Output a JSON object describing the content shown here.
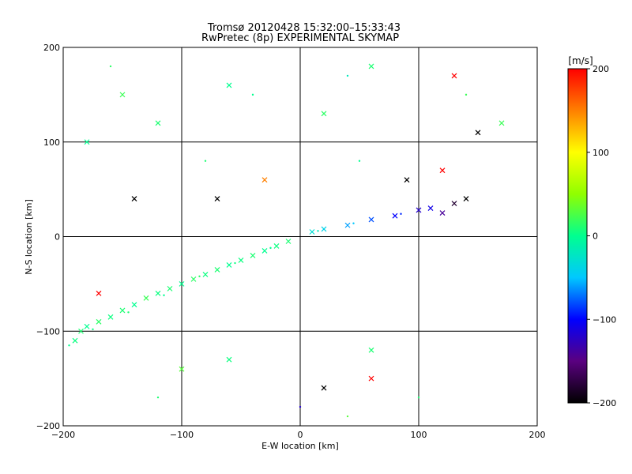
{
  "chart_data": {
    "type": "scatter",
    "title": "Tromsø 20120428 15:32:00–15:33:43",
    "subtitle": "RwPretec (8p) EXPERIMENTAL SKYMAP",
    "xlabel": "E-W location [km]",
    "ylabel": "N-S location [km]",
    "xlim": [
      -200,
      200
    ],
    "ylim": [
      -200,
      200
    ],
    "xticks": [
      -200,
      -100,
      0,
      100,
      200
    ],
    "yticks": [
      -200,
      -100,
      0,
      100,
      200
    ],
    "grid": true,
    "colorbar": {
      "label": "[m/s]",
      "range": [
        -200,
        200
      ],
      "ticks": [
        200,
        100,
        0,
        -100,
        -200
      ],
      "colormap": [
        "#000000",
        "#5a0080",
        "#0000ff",
        "#00c8ff",
        "#00ff90",
        "#90ff00",
        "#ffff00",
        "#ff8000",
        "#ff0000"
      ]
    },
    "marker_styles": [
      "x",
      "dot"
    ],
    "point_density_note": "thousands of echoes; main band from about (-200,-110) to (-10,-5), secondary band from (0,0) to (110,30)",
    "series": [
      {
        "marker": "x",
        "points": [
          [
            -190,
            -110,
            5
          ],
          [
            -185,
            -100,
            10
          ],
          [
            -180,
            -95,
            0
          ],
          [
            -170,
            -90,
            15
          ],
          [
            -160,
            -85,
            5
          ],
          [
            -150,
            -78,
            10
          ],
          [
            -140,
            -72,
            0
          ],
          [
            -130,
            -65,
            20
          ],
          [
            -120,
            -60,
            5
          ],
          [
            -110,
            -55,
            10
          ],
          [
            -100,
            -50,
            0
          ],
          [
            -90,
            -45,
            15
          ],
          [
            -80,
            -40,
            5
          ],
          [
            -70,
            -35,
            10
          ],
          [
            -60,
            -30,
            0
          ],
          [
            -50,
            -25,
            5
          ],
          [
            -40,
            -20,
            10
          ],
          [
            -30,
            -15,
            0
          ],
          [
            -20,
            -10,
            5
          ],
          [
            -10,
            -5,
            10
          ],
          [
            10,
            5,
            -30
          ],
          [
            20,
            8,
            -40
          ],
          [
            40,
            12,
            -60
          ],
          [
            60,
            18,
            -80
          ],
          [
            80,
            22,
            -100
          ],
          [
            100,
            28,
            -120
          ],
          [
            110,
            30,
            -110
          ],
          [
            120,
            25,
            -140
          ],
          [
            130,
            35,
            -180
          ],
          [
            140,
            40,
            -200
          ],
          [
            -180,
            100,
            0
          ],
          [
            -150,
            150,
            20
          ],
          [
            -120,
            120,
            10
          ],
          [
            -60,
            160,
            0
          ],
          [
            20,
            130,
            15
          ],
          [
            60,
            180,
            10
          ],
          [
            150,
            110,
            -210
          ],
          [
            130,
            170,
            200
          ],
          [
            170,
            120,
            20
          ],
          [
            -100,
            -140,
            30
          ],
          [
            -60,
            -130,
            5
          ],
          [
            20,
            -160,
            -210
          ],
          [
            60,
            -150,
            200
          ],
          [
            -30,
            60,
            150
          ],
          [
            -70,
            40,
            -210
          ],
          [
            90,
            60,
            -210
          ],
          [
            120,
            70,
            200
          ],
          [
            -140,
            40,
            -210
          ],
          [
            -170,
            -60,
            200
          ],
          [
            60,
            -120,
            10
          ]
        ]
      },
      {
        "marker": "dot",
        "points": [
          [
            -195,
            -115,
            0
          ],
          [
            -175,
            -98,
            5
          ],
          [
            -145,
            -80,
            10
          ],
          [
            -115,
            -62,
            0
          ],
          [
            -85,
            -42,
            15
          ],
          [
            -55,
            -28,
            5
          ],
          [
            -25,
            -12,
            0
          ],
          [
            15,
            6,
            -20
          ],
          [
            45,
            14,
            -50
          ],
          [
            85,
            24,
            -90
          ],
          [
            -160,
            180,
            15
          ],
          [
            -40,
            150,
            0
          ],
          [
            40,
            170,
            -20
          ],
          [
            140,
            150,
            20
          ],
          [
            -120,
            -170,
            10
          ],
          [
            0,
            -180,
            -120
          ],
          [
            40,
            -190,
            30
          ],
          [
            100,
            -170,
            10
          ],
          [
            -80,
            80,
            10
          ],
          [
            50,
            80,
            0
          ]
        ]
      }
    ]
  }
}
